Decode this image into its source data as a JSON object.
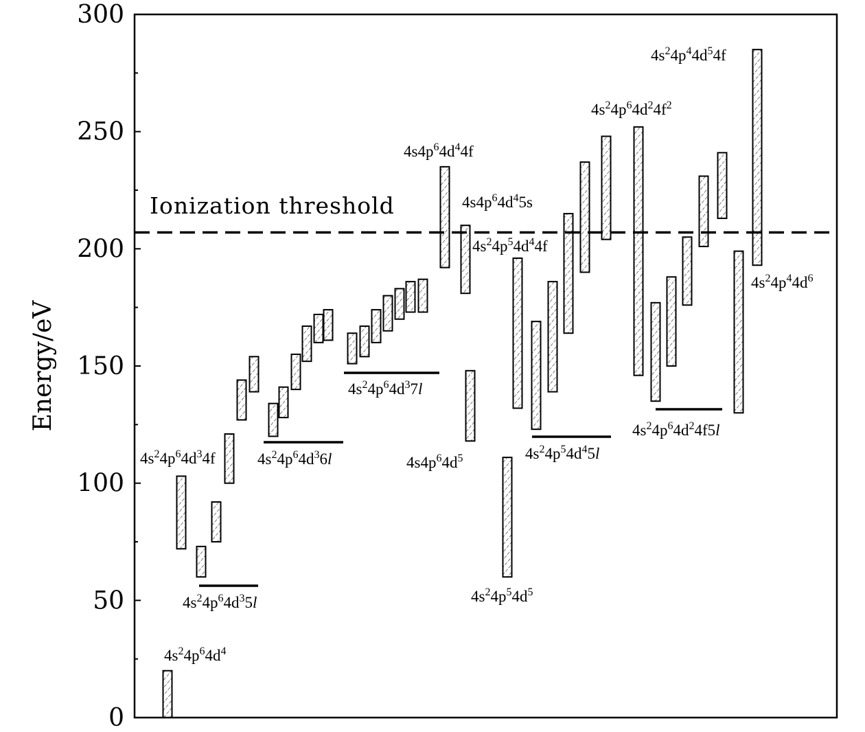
{
  "chart_data": {
    "type": "range-bar",
    "ylabel": "Energy/eV",
    "ylim": [
      0,
      300
    ],
    "yticks": [
      "0",
      "50",
      "100",
      "150",
      "200",
      "250",
      "300"
    ],
    "threshold": {
      "label": "Ionization threshold",
      "value": 207
    },
    "groups": [
      {
        "id": "g1",
        "label": {
          "pre": "4s",
          "s1": "2",
          "m1": "4p",
          "s2": "6",
          "m2": "4d",
          "s3": "4",
          "post": ""
        },
        "bars": [
          [
            0,
            20
          ]
        ]
      },
      {
        "id": "g2",
        "label": {
          "pre": "4s",
          "s1": "2",
          "m1": "4p",
          "s2": "6",
          "m2": "4d",
          "s3": "3",
          "post": "4f"
        },
        "bars": [
          [
            72,
            103
          ]
        ]
      },
      {
        "id": "g3",
        "label": {
          "pre": "4s",
          "s1": "2",
          "m1": "4p",
          "s2": "6",
          "m2": "4d",
          "s3": "3",
          "post": "5",
          "italic": "l"
        },
        "bars": [
          [
            60,
            73
          ],
          [
            75,
            92
          ],
          [
            100,
            121
          ],
          [
            127,
            144
          ],
          [
            139,
            154
          ]
        ]
      },
      {
        "id": "g4",
        "label": {
          "pre": "4s",
          "s1": "2",
          "m1": "4p",
          "s2": "6",
          "m2": "4d",
          "s3": "3",
          "post": "6",
          "italic": "l"
        },
        "bars": [
          [
            120,
            134
          ],
          [
            128,
            141
          ],
          [
            140,
            155
          ],
          [
            152,
            167
          ],
          [
            160,
            172
          ],
          [
            161,
            174
          ]
        ]
      },
      {
        "id": "g5",
        "label": {
          "pre": "4s",
          "s1": "2",
          "m1": "4p",
          "s2": "6",
          "m2": "4d",
          "s3": "3",
          "post": "7",
          "italic": "l"
        },
        "bars": [
          [
            151,
            164
          ],
          [
            154,
            167
          ],
          [
            160,
            174
          ],
          [
            165,
            180
          ],
          [
            170,
            183
          ],
          [
            173,
            186
          ],
          [
            173,
            187
          ]
        ]
      },
      {
        "id": "g6",
        "label": {
          "pre": "4s4p",
          "s1": "6",
          "m1": "4d",
          "s2": "4",
          "m2": "4f",
          "s3": "",
          "post": ""
        },
        "bars": [
          [
            192,
            235
          ]
        ]
      },
      {
        "id": "g7",
        "label": {
          "pre": "4s4p",
          "s1": "6",
          "m1": "4d",
          "s2": "4",
          "m2": "5s",
          "s3": "",
          "post": ""
        },
        "bars": [
          [
            181,
            210
          ]
        ]
      },
      {
        "id": "g8",
        "label": {
          "pre": "4s4p",
          "s1": "6",
          "m1": "4d",
          "s2": "5",
          "m2": "",
          "s3": "",
          "post": ""
        },
        "bars": [
          [
            118,
            148
          ]
        ]
      },
      {
        "id": "g9",
        "label": {
          "pre": "4s",
          "s1": "2",
          "m1": "4p",
          "s2": "5",
          "m2": "4d",
          "s3": "5",
          "post": ""
        },
        "bars": [
          [
            60,
            111
          ]
        ]
      },
      {
        "id": "g10",
        "label": {
          "pre": "4s",
          "s1": "2",
          "m1": "4p",
          "s2": "5",
          "m2": "4d",
          "s3": "4",
          "post": "4f"
        },
        "bars": [
          [
            132,
            196
          ]
        ]
      },
      {
        "id": "g11",
        "label": {
          "pre": "4s",
          "s1": "2",
          "m1": "4p",
          "s2": "5",
          "m2": "4d",
          "s3": "4",
          "post": "5",
          "italic": "l"
        },
        "bars": [
          [
            123,
            169
          ],
          [
            139,
            186
          ],
          [
            164,
            215
          ],
          [
            190,
            237
          ],
          [
            204,
            248
          ]
        ]
      },
      {
        "id": "g12",
        "label": {
          "pre": "4s",
          "s1": "2",
          "m1": "4p",
          "s2": "6",
          "m2": "4d",
          "s3": "2",
          "post": "4f",
          "s4": "2"
        },
        "bars": [
          [
            146,
            252
          ]
        ]
      },
      {
        "id": "g13",
        "label": {
          "pre": "4s",
          "s1": "2",
          "m1": "4p",
          "s2": "6",
          "m2": "4d",
          "s3": "2",
          "post": "4f5",
          "italic": "l"
        },
        "bars": [
          [
            135,
            177
          ],
          [
            150,
            188
          ],
          [
            176,
            205
          ],
          [
            201,
            231
          ],
          [
            213,
            241
          ]
        ]
      },
      {
        "id": "g14",
        "label": {
          "pre": "4s",
          "s1": "2",
          "m1": "4p",
          "s2": "4",
          "m2": "4d",
          "s3": "6",
          "post": ""
        },
        "bars": [
          [
            130,
            199
          ]
        ]
      },
      {
        "id": "g15",
        "label": {
          "pre": "4s",
          "s1": "2",
          "m1": "4p",
          "s2": "4",
          "m2": "4d",
          "s3": "5",
          "post": "4f"
        },
        "bars": [
          [
            193,
            285
          ]
        ]
      }
    ]
  }
}
